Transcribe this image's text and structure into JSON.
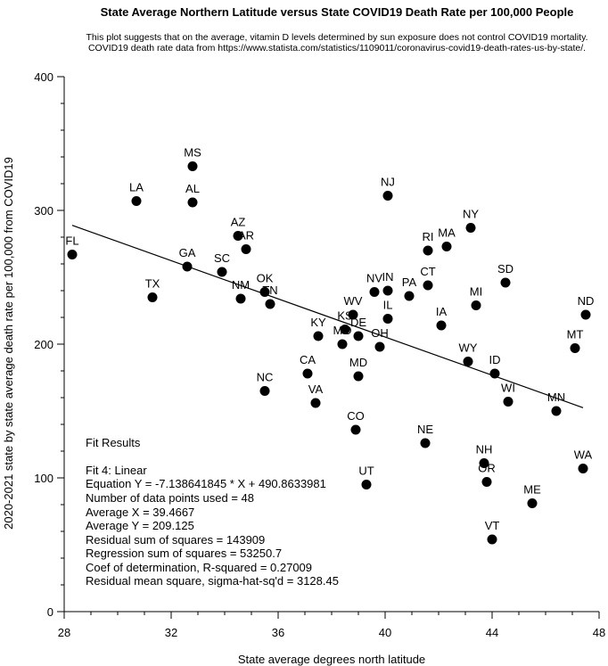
{
  "chart_data": {
    "type": "scatter",
    "title": "State Average Northern Latitude versus State COVID19 Death Rate per 100,000 People",
    "subtitle_lines": [
      "This plot suggests that on the average, vitamin D levels determined by sun exposure does not control COVID19 mortality.",
      "COVID19 death rate data from https://www.statista.com/statistics/1109011/coronavirus-covid19-death-rates-us-by-state/."
    ],
    "xlabel": "State average degrees north latitude",
    "ylabel": "2020-2021 state by state average death rate per 100,000 from COVID19",
    "xlim": [
      28,
      48
    ],
    "ylim": [
      0,
      400
    ],
    "xticks": [
      28,
      32,
      36,
      40,
      44,
      48
    ],
    "yticks": [
      0,
      100,
      200,
      300,
      400
    ],
    "points": [
      {
        "label": "FL",
        "x": 28.3,
        "y": 267
      },
      {
        "label": "LA",
        "x": 30.7,
        "y": 307
      },
      {
        "label": "TX",
        "x": 31.3,
        "y": 235
      },
      {
        "label": "GA",
        "x": 32.6,
        "y": 258
      },
      {
        "label": "MS",
        "x": 32.8,
        "y": 333
      },
      {
        "label": "AL",
        "x": 32.8,
        "y": 306
      },
      {
        "label": "SC",
        "x": 33.9,
        "y": 254
      },
      {
        "label": "AZ",
        "x": 34.5,
        "y": 281
      },
      {
        "label": "AR",
        "x": 34.8,
        "y": 271
      },
      {
        "label": "NM",
        "x": 34.6,
        "y": 234
      },
      {
        "label": "OK",
        "x": 35.5,
        "y": 239
      },
      {
        "label": "TN",
        "x": 35.7,
        "y": 230
      },
      {
        "label": "NC",
        "x": 35.5,
        "y": 165
      },
      {
        "label": "CA",
        "x": 37.1,
        "y": 178
      },
      {
        "label": "VA",
        "x": 37.4,
        "y": 156
      },
      {
        "label": "KY",
        "x": 37.5,
        "y": 206
      },
      {
        "label": "KS",
        "x": 38.5,
        "y": 211
      },
      {
        "label": "MO",
        "x": 38.4,
        "y": 200
      },
      {
        "label": "WV",
        "x": 38.8,
        "y": 222
      },
      {
        "label": "DE",
        "x": 39.0,
        "y": 206
      },
      {
        "label": "MD",
        "x": 39.0,
        "y": 176
      },
      {
        "label": "CO",
        "x": 38.9,
        "y": 136
      },
      {
        "label": "UT",
        "x": 39.3,
        "y": 95
      },
      {
        "label": "NV",
        "x": 39.6,
        "y": 239
      },
      {
        "label": "IN",
        "x": 40.1,
        "y": 240
      },
      {
        "label": "IL",
        "x": 40.1,
        "y": 219
      },
      {
        "label": "OH",
        "x": 39.8,
        "y": 198
      },
      {
        "label": "NJ",
        "x": 40.1,
        "y": 311
      },
      {
        "label": "PA",
        "x": 40.9,
        "y": 236
      },
      {
        "label": "NE",
        "x": 41.5,
        "y": 126
      },
      {
        "label": "CT",
        "x": 41.6,
        "y": 244
      },
      {
        "label": "RI",
        "x": 41.6,
        "y": 270
      },
      {
        "label": "IA",
        "x": 42.1,
        "y": 214
      },
      {
        "label": "MA",
        "x": 42.3,
        "y": 273
      },
      {
        "label": "NY",
        "x": 43.2,
        "y": 287
      },
      {
        "label": "WY",
        "x": 43.1,
        "y": 187
      },
      {
        "label": "MI",
        "x": 43.4,
        "y": 229
      },
      {
        "label": "NH",
        "x": 43.7,
        "y": 111
      },
      {
        "label": "OR",
        "x": 43.8,
        "y": 97
      },
      {
        "label": "VT",
        "x": 44.0,
        "y": 54
      },
      {
        "label": "ID",
        "x": 44.1,
        "y": 178
      },
      {
        "label": "SD",
        "x": 44.5,
        "y": 246
      },
      {
        "label": "WI",
        "x": 44.6,
        "y": 157
      },
      {
        "label": "ME",
        "x": 45.5,
        "y": 81
      },
      {
        "label": "MN",
        "x": 46.4,
        "y": 150
      },
      {
        "label": "MT",
        "x": 47.1,
        "y": 197
      },
      {
        "label": "ND",
        "x": 47.5,
        "y": 222
      },
      {
        "label": "WA",
        "x": 47.4,
        "y": 107
      }
    ],
    "fit": {
      "slope": -7.138641845,
      "intercept": 490.8633981,
      "x_start": 28.3,
      "x_end": 47.4
    },
    "fit_results_lines": [
      "Fit Results",
      "Fit 4: Linear",
      "Equation Y = -7.138641845 * X + 490.8633981",
      "Number of data points used = 48",
      "Average X = 39.4667",
      "Average Y = 209.125",
      "Residual sum of squares = 143909",
      "Regression sum of squares = 53250.7",
      "Coef of determination, R-squared = 0.27009",
      "Residual mean square, sigma-hat-sq'd = 3128.45"
    ],
    "grid": false,
    "legend": "none"
  }
}
